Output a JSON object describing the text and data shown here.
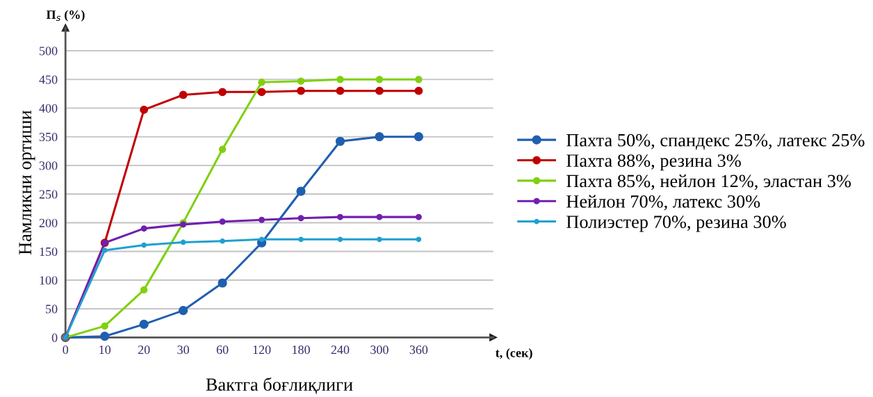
{
  "chart_data": {
    "type": "line",
    "title": null,
    "ylabel": "Намликни ортиши",
    "xlabel": "Вактга боғлиқлиги",
    "annotations": [
      "П$_{s}$ (%)",
      "t, (сек)"
    ],
    "categories": [
      "0",
      "10",
      "20",
      "30",
      "60",
      "120",
      "180",
      "240",
      "300",
      "360"
    ],
    "series": [
      {
        "name": "Пахта 50%, спандекс 25%, латекс 25%",
        "color": "#1f5fb0",
        "values": [
          0,
          2,
          23,
          47,
          95,
          165,
          255,
          342,
          350,
          350
        ]
      },
      {
        "name": "Пахта 88%, резина 3%",
        "color": "#c00000",
        "values": [
          0,
          165,
          397,
          423,
          428,
          428,
          430,
          430,
          430,
          430
        ]
      },
      {
        "name": "Пахта 85%, нейлон 12%, эластан 3%",
        "color": "#80d010",
        "values": [
          0,
          20,
          83,
          200,
          328,
          445,
          447,
          450,
          450,
          450
        ]
      },
      {
        "name": "Нейлон 70%, латекс 30%",
        "color": "#7020b0",
        "values": [
          0,
          165,
          190,
          197,
          202,
          205,
          208,
          210,
          210,
          210
        ]
      },
      {
        "name": "Полиэстер 70%, резина 30%",
        "color": "#20a0d0",
        "values": [
          0,
          152,
          161,
          166,
          168,
          171,
          171,
          171,
          171,
          171
        ]
      }
    ],
    "ylim": [
      0,
      540
    ],
    "yticks": [
      0,
      50,
      100,
      150,
      200,
      250,
      300,
      350,
      400,
      450,
      500
    ],
    "grid": "y",
    "legend": "right",
    "marker": "circle",
    "line_style": "solid"
  }
}
